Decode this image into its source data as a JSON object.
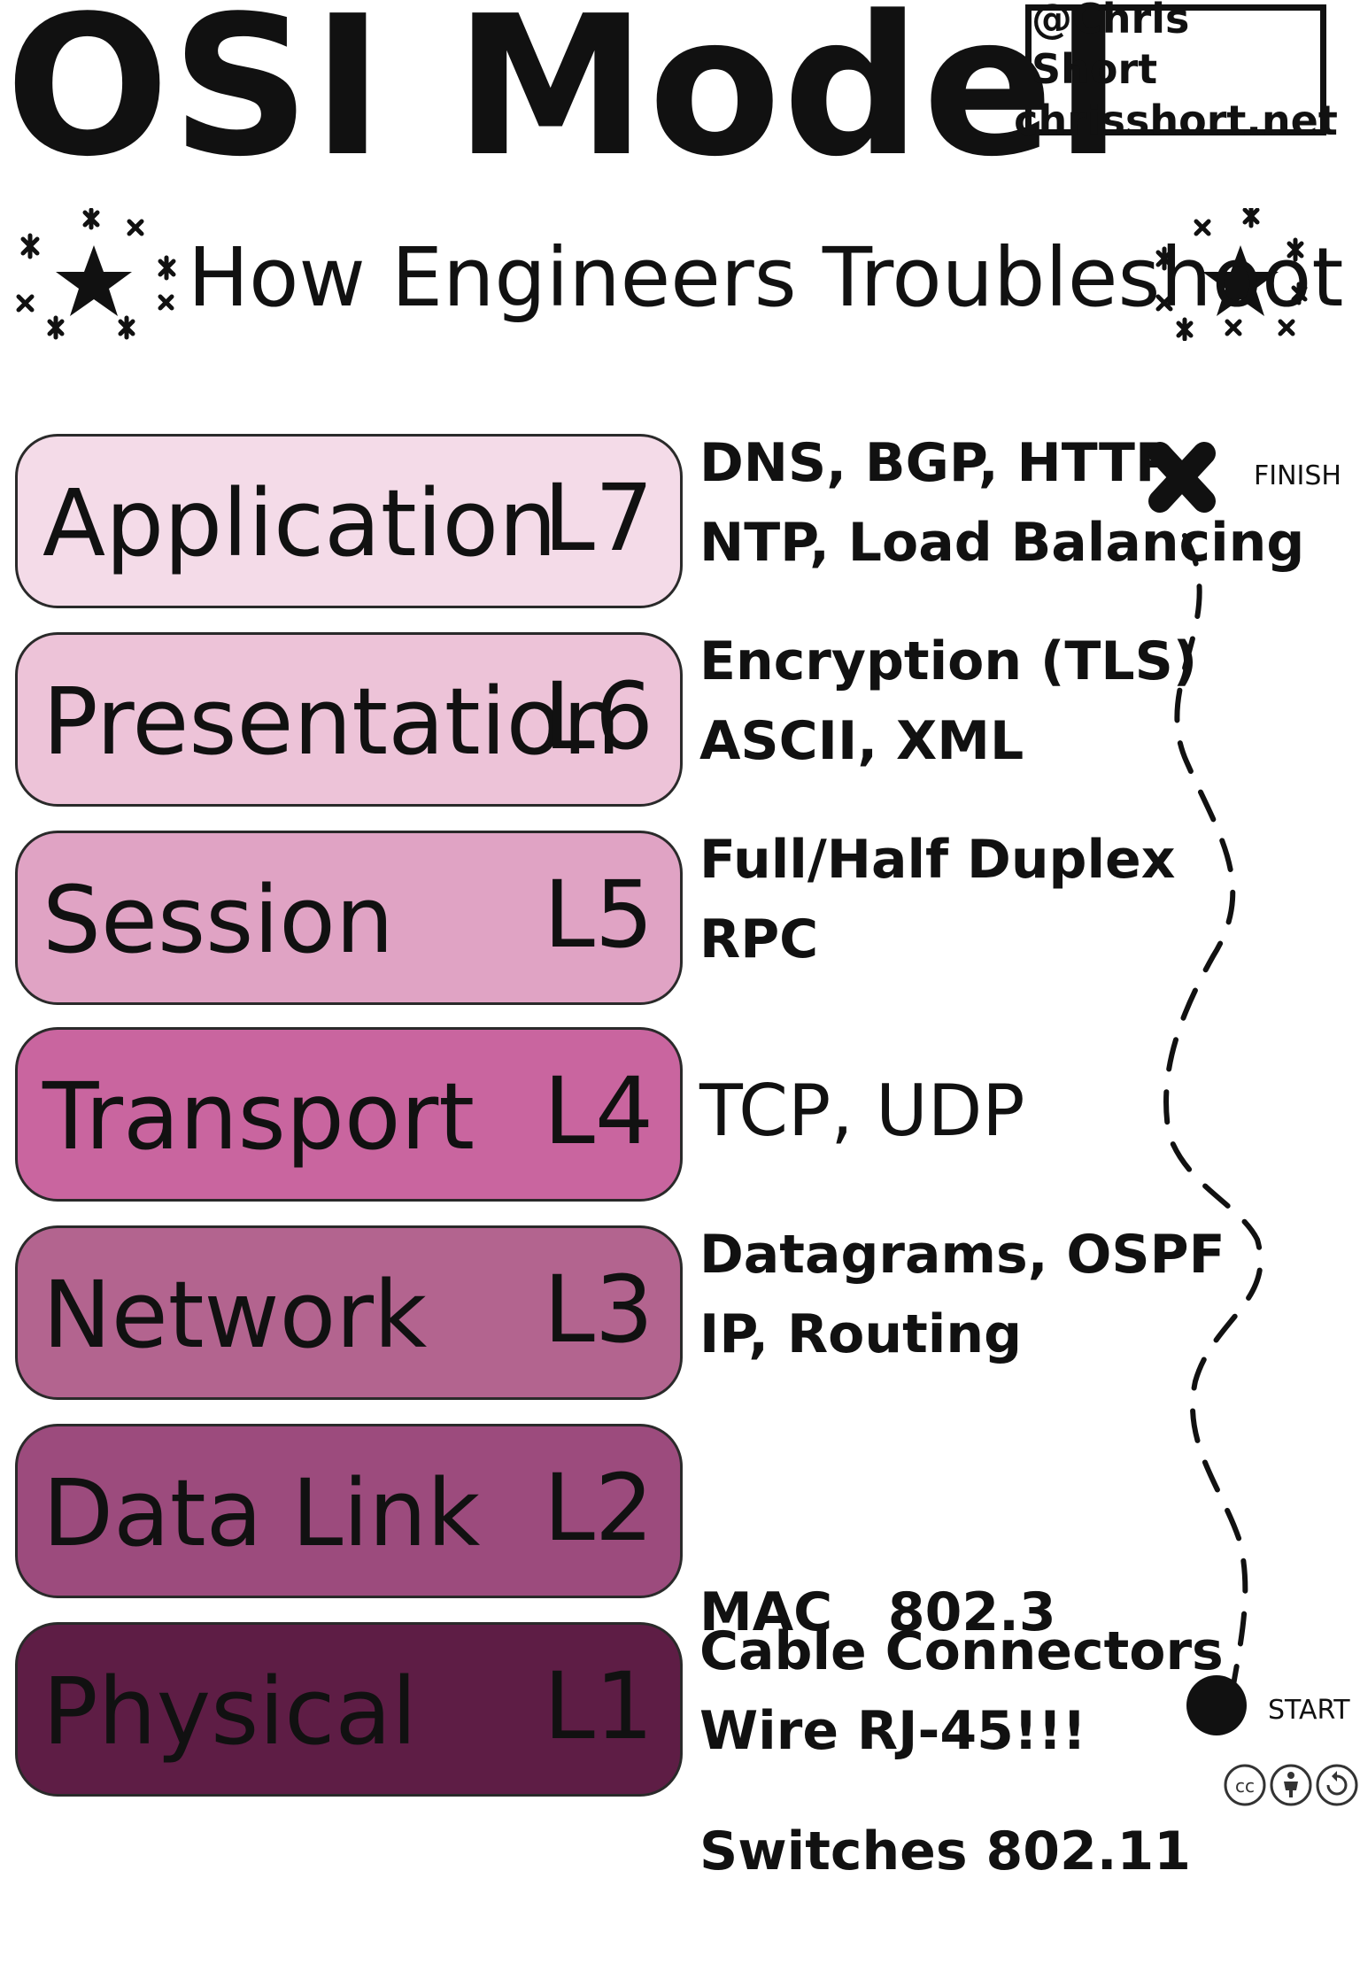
{
  "title": "OSI Model",
  "subtitle": "How Engineers Troubleshoot",
  "credit": {
    "handle": "@Chris Short",
    "site": "chrisshort.net"
  },
  "layers": [
    {
      "name": "Application",
      "num": "L7",
      "protocols": [
        "DNS, BGP, HTTP",
        "NTP, Load Balancing"
      ],
      "color": "#f4dbe8"
    },
    {
      "name": "Presentation",
      "num": "L6",
      "protocols": [
        "Encryption (TLS)",
        "ASCII, XML"
      ],
      "color": "#edc3d8"
    },
    {
      "name": "Session",
      "num": "L5",
      "protocols": [
        "Full/Half Duplex",
        "RPC"
      ],
      "color": "#e0a3c4"
    },
    {
      "name": "Transport",
      "num": "L4",
      "protocols": [
        "TCP, UDP"
      ],
      "color": "#c9659f"
    },
    {
      "name": "Network",
      "num": "L3",
      "protocols": [
        "Datagrams, OSPF",
        "IP, Routing"
      ],
      "color": "#b3648f"
    },
    {
      "name": "Data Link",
      "num": "L2",
      "protocols": [
        "MAC   802.3",
        "Switches 802.11"
      ],
      "color": "#9c4b7d"
    },
    {
      "name": "Physical",
      "num": "L1",
      "protocols": [
        "Cable Connectors",
        "Wire RJ-45!!!"
      ],
      "color": "#5e1d45"
    }
  ],
  "path": {
    "finish_label": "FINISH",
    "start_label": "START"
  },
  "license_icons": [
    "cc-icon",
    "attribution-icon",
    "share-alike-icon"
  ]
}
